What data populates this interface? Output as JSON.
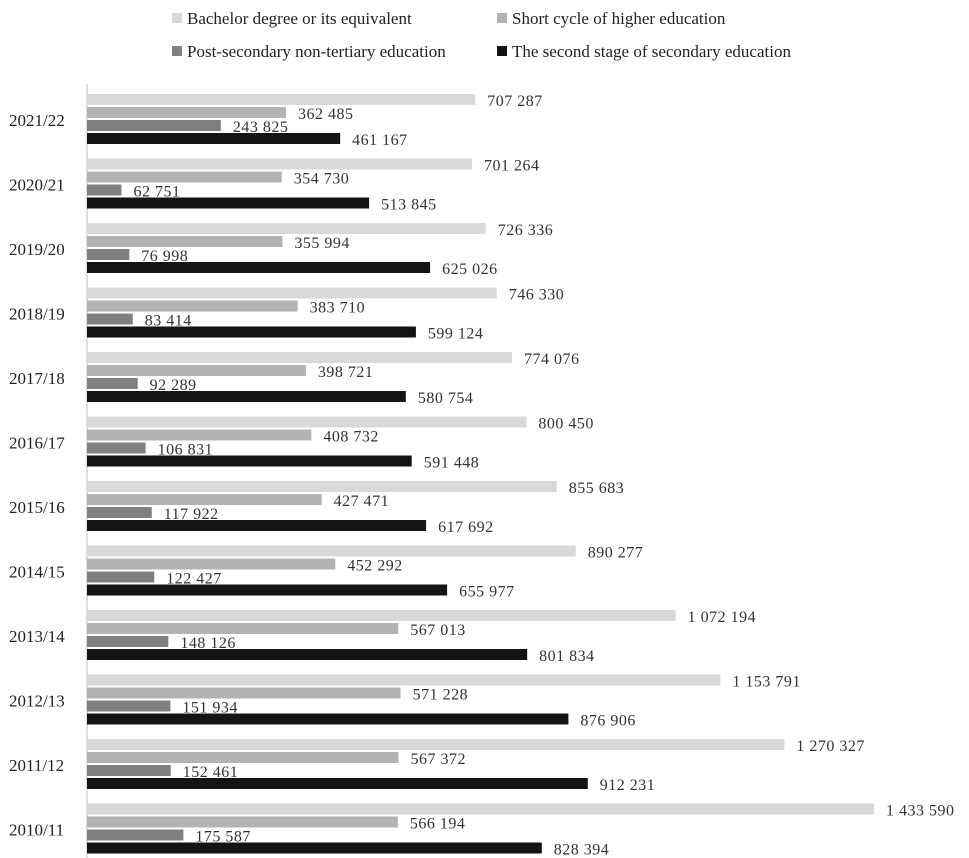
{
  "chart_data": {
    "type": "bar",
    "orientation": "horizontal",
    "title": "",
    "xlabel": "",
    "ylabel": "",
    "legend_position": "top",
    "categories": [
      "2021/22",
      "2020/21",
      "2019/20",
      "2018/19",
      "2017/18",
      "2016/17",
      "2015/16",
      "2014/15",
      "2013/14",
      "2012/13",
      "2011/12",
      "2010/11"
    ],
    "series": [
      {
        "name": "Bachelor degree or its equivalent",
        "color": "#d9d9d9",
        "values": [
          707287,
          701264,
          726336,
          746330,
          774076,
          800450,
          855683,
          890277,
          1072194,
          1153791,
          1270327,
          1433590
        ],
        "labels": [
          "707 287",
          "701 264",
          "726 336",
          "746 330",
          "774 076",
          "800 450",
          "855 683",
          "890 277",
          "1 072 194",
          "1 153 791",
          "1 270 327",
          "1 433 590"
        ]
      },
      {
        "name": "Short cycle of higher education",
        "color": "#b3b3b3",
        "values": [
          362485,
          354730,
          355994,
          383710,
          398721,
          408732,
          427471,
          452292,
          567013,
          571228,
          567372,
          566194
        ],
        "labels": [
          "362 485",
          "354 730",
          "355 994",
          "383 710",
          "398 721",
          "408 732",
          "427 471",
          "452 292",
          "567 013",
          "571 228",
          "567 372",
          "566 194"
        ]
      },
      {
        "name": "Post-secondary non-tertiary education",
        "color": "#808080",
        "values": [
          243825,
          62751,
          76998,
          83414,
          92289,
          106831,
          117922,
          122427,
          148126,
          151934,
          152461,
          175587
        ],
        "labels": [
          "243 825",
          "62 751",
          "76 998",
          "83 414",
          "92 289",
          "106 831",
          "117 922",
          "122 427",
          "148 126",
          "151 934",
          "152 461",
          "175 587"
        ]
      },
      {
        "name": "The second stage of secondary education",
        "color": "#141414",
        "values": [
          461167,
          513845,
          625026,
          599124,
          580754,
          591448,
          617692,
          655977,
          801834,
          876906,
          912231,
          828394
        ],
        "labels": [
          "461 167",
          "513 845",
          "625 026",
          "599 124",
          "580 754",
          "591 448",
          "617 692",
          "655 977",
          "801 834",
          "876 906",
          "912 231",
          "828 394"
        ]
      }
    ]
  }
}
